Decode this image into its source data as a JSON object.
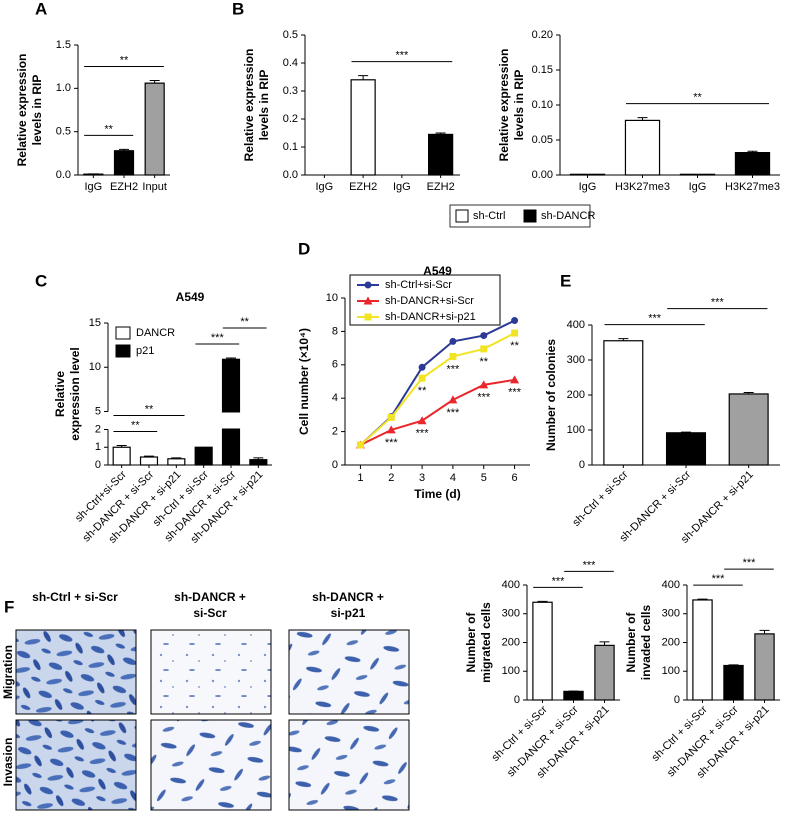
{
  "chart_data": [
    {
      "type": "bar",
      "panel": "A",
      "ylabel": [
        "Relative expression",
        "levels in RIP"
      ],
      "categories": [
        "IgG",
        "EZH2",
        "Input"
      ],
      "values": [
        0.01,
        0.28,
        1.06
      ],
      "errors": [
        0.003,
        0.015,
        0.03
      ],
      "colors": [
        "#ffffff",
        "#000000",
        "#a0a0a0"
      ],
      "ylim": [
        0,
        1.5
      ],
      "yticks": [
        {
          "value": 0,
          "label": "0.0"
        },
        0.5,
        {
          "value": 1,
          "label": "1.0"
        },
        1.5
      ],
      "annotations": [
        {
          "text": "**",
          "from": 0,
          "to": 1
        },
        {
          "text": "**",
          "from": 0,
          "to": 2
        }
      ]
    },
    {
      "type": "bar",
      "panel": "B",
      "ylabel": [
        "Relative expression",
        "levels in RIP"
      ],
      "categories": [
        "IgG",
        "EZH2",
        "IgG",
        "EZH2"
      ],
      "values": [
        0,
        0.34,
        0,
        0.145
      ],
      "errors": [
        0,
        0.015,
        0,
        0.005
      ],
      "colors": [
        "#ffffff",
        "#ffffff",
        "#000000",
        "#000000"
      ],
      "ylim": [
        0,
        0.5
      ],
      "yticks": [
        {
          "value": 0,
          "label": "0.0"
        },
        0.1,
        0.2,
        0.3,
        0.4,
        0.5
      ],
      "annotations": [
        {
          "text": "***",
          "from": 1,
          "to": 3
        }
      ]
    },
    {
      "type": "bar",
      "ylabel": [
        "Relative expression",
        "levels in RIP"
      ],
      "categories": [
        "IgG",
        "H3K27me3",
        "IgG",
        "H3K27me3"
      ],
      "values": [
        0.001,
        0.078,
        0.001,
        0.032
      ],
      "errors": [
        0,
        0.004,
        0,
        0.002
      ],
      "colors": [
        "#ffffff",
        "#ffffff",
        "#000000",
        "#000000"
      ],
      "ylim": [
        0,
        0.2
      ],
      "yticks": [
        {
          "value": 0,
          "label": "0.00"
        },
        {
          "value": 0.05,
          "label": "0.05"
        },
        {
          "value": 0.1,
          "label": "0.10"
        },
        {
          "value": 0.15,
          "label": "0.15"
        },
        {
          "value": 0.2,
          "label": "0.20"
        }
      ],
      "annotations": [
        {
          "text": "**",
          "from": 1,
          "to": 3
        }
      ],
      "legend": [
        {
          "name": "sh-Ctrl",
          "color": "#ffffff"
        },
        {
          "name": "sh-DANCR",
          "color": "#000000"
        }
      ]
    },
    {
      "type": "bar",
      "panel": "C",
      "title": "A549",
      "ylabel": [
        "Relative",
        "expression level"
      ],
      "categories": [
        "sh-Ctrl+si-Scr",
        "sh-DANCR + si-Scr",
        "sh-DANCR + si-p21",
        "sh-Ctrl + si-Scr",
        "sh-DANCR + si-Scr",
        "sh-DANCR + si-p21"
      ],
      "series": [
        {
          "name": "DANCR",
          "color": "#ffffff",
          "values": [
            1.0,
            0.45,
            0.35,
            null,
            null,
            null
          ],
          "errors": [
            0.1,
            0.05,
            0.05,
            null,
            null,
            null
          ]
        },
        {
          "name": "p21",
          "color": "#000000",
          "values": [
            null,
            null,
            null,
            1.0,
            10.9,
            0.3
          ],
          "errors": [
            null,
            null,
            null,
            0,
            0.15,
            0.1
          ]
        }
      ],
      "ylim": [
        0,
        15
      ],
      "ybreak": [
        2,
        5
      ],
      "yticks": [
        0,
        1,
        2,
        5,
        10,
        15
      ],
      "annotations": [
        {
          "text": "**",
          "from": 0,
          "to": 1
        },
        {
          "text": "**",
          "from": 0,
          "to": 2
        },
        {
          "text": "***",
          "from": 3,
          "to": 4
        },
        {
          "text": "**",
          "from": 4,
          "to": 5
        }
      ]
    },
    {
      "type": "line",
      "panel": "D",
      "title": "A549",
      "xlabel": "Time (d)",
      "ylabel": [
        "Cell number (×10⁴)"
      ],
      "x": [
        1,
        2,
        3,
        4,
        5,
        6
      ],
      "xlim": [
        0.5,
        6.5
      ],
      "xticks": [
        1,
        2,
        3,
        4,
        5,
        6
      ],
      "ylim": [
        0,
        10
      ],
      "yticks": [
        0,
        2,
        4,
        6,
        8,
        10
      ],
      "series": [
        {
          "name": "sh-Ctrl+si-Scr",
          "color": "#2b3a97",
          "marker": "circle",
          "values": [
            1.2,
            2.9,
            5.85,
            7.4,
            7.75,
            8.65
          ]
        },
        {
          "name": "sh-DANCR+si-Scr",
          "color": "#e8262b",
          "marker": "triangle",
          "values": [
            1.2,
            2.1,
            2.65,
            3.9,
            4.8,
            5.1
          ],
          "point_labels": [
            null,
            "***",
            "***",
            "***",
            "***",
            "***"
          ]
        },
        {
          "name": "sh-DANCR+si-p21",
          "color": "#f2e424",
          "marker": "square",
          "values": [
            1.2,
            2.85,
            5.2,
            6.5,
            6.95,
            7.9
          ],
          "point_labels": [
            null,
            null,
            "**",
            "***",
            "**",
            "**"
          ]
        }
      ]
    },
    {
      "type": "bar",
      "panel": "E",
      "ylabel": [
        "Number of colonies"
      ],
      "categories": [
        "sh-Ctrl + si-Scr",
        "sh-DANCR + si-Scr",
        "sh-DANCR + si-p21"
      ],
      "values": [
        355,
        92,
        203
      ],
      "errors": [
        6,
        2,
        4
      ],
      "colors": [
        "#ffffff",
        "#000000",
        "#a0a0a0"
      ],
      "ylim": [
        0,
        400
      ],
      "yticks": [
        0,
        100,
        200,
        300,
        400
      ],
      "annotations": [
        {
          "text": "***",
          "from": 0,
          "to": 1
        },
        {
          "text": "***",
          "from": 1,
          "to": 2
        }
      ]
    },
    {
      "type": "bar",
      "ylabel": [
        "Number of",
        "migrated cells"
      ],
      "categories": [
        "sh-Ctrl + si-Scr",
        "sh-DANCR + si-Scr",
        "sh-DANCR + si-p21"
      ],
      "values": [
        340,
        30,
        190
      ],
      "errors": [
        3,
        1,
        12
      ],
      "colors": [
        "#ffffff",
        "#000000",
        "#a0a0a0"
      ],
      "ylim": [
        0,
        400
      ],
      "yticks": [
        0,
        100,
        200,
        300,
        400
      ],
      "annotations": [
        {
          "text": "***",
          "from": 0,
          "to": 1
        },
        {
          "text": "***",
          "from": 1,
          "to": 2
        }
      ]
    },
    {
      "type": "bar",
      "ylabel": [
        "Number of",
        "invaded cells"
      ],
      "categories": [
        "sh-Ctrl + si-Scr",
        "sh-DANCR + si-Scr",
        "sh-DANCR + si-p21"
      ],
      "values": [
        348,
        120,
        230
      ],
      "errors": [
        3,
        2,
        12
      ],
      "colors": [
        "#ffffff",
        "#000000",
        "#a0a0a0"
      ],
      "ylim": [
        0,
        400
      ],
      "yticks": [
        0,
        100,
        200,
        300,
        400
      ],
      "annotations": [
        {
          "text": "***",
          "from": 0,
          "to": 1
        },
        {
          "text": "***",
          "from": 1,
          "to": 2
        }
      ]
    }
  ],
  "figure_f": {
    "panel": "F",
    "columns": [
      [
        "sh-Ctrl + si-Scr"
      ],
      [
        "sh-DANCR +",
        "si-Scr"
      ],
      [
        "sh-DANCR +",
        "si-p21"
      ]
    ],
    "rows": [
      "Migration",
      "Invasion"
    ]
  }
}
